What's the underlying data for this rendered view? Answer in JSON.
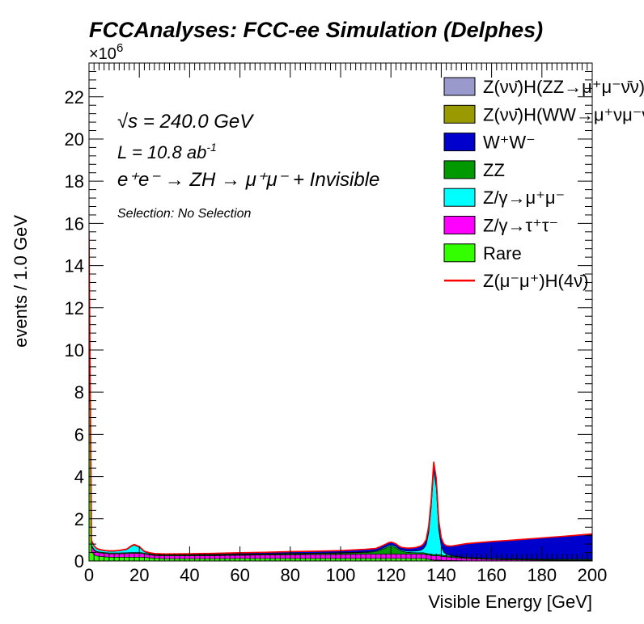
{
  "chart_data": {
    "type": "area",
    "title": "FCCAnalyses: FCC-ee Simulation (Delphes)",
    "xlabel": "Visible Energy [GeV]",
    "ylabel": "events / 1.0 GeV",
    "y_multiplier": "×10",
    "y_multiplier_exp": "6",
    "xlim": [
      0,
      200
    ],
    "ylim": [
      0,
      23.6
    ],
    "x_ticks": [
      "0",
      "20",
      "40",
      "60",
      "80",
      "100",
      "120",
      "140",
      "160",
      "180",
      "200"
    ],
    "y_ticks": [
      "0",
      "2",
      "4",
      "6",
      "8",
      "10",
      "12",
      "14",
      "16",
      "18",
      "20",
      "22"
    ],
    "annotations": {
      "sqrt_s": "√s = 240.0 GeV",
      "lumi": "L = 10.8 ab",
      "lumi_exp": "-1",
      "process": "e⁺e⁻ → ZH → μ⁺μ⁻ + Invisible",
      "selection": "Selection: No Selection"
    },
    "stack_order_bottom_to_top": [
      "Rare",
      "Z/γ→τ⁺τ⁻",
      "ZZ",
      "Z/γ→μ⁺μ⁻",
      "W⁺W⁻",
      "Z(νν̄)H(WW→μ⁺νμ⁻ν̄)",
      "Z(νν̄)H(ZZ→μ⁺μ⁻ν̄ν)"
    ],
    "x": [
      0,
      1,
      2,
      3,
      4,
      6,
      8,
      10,
      12,
      15,
      17,
      18,
      19,
      20,
      21,
      22,
      24,
      26,
      30,
      40,
      50,
      60,
      70,
      80,
      90,
      100,
      110,
      114,
      116,
      118,
      119,
      120,
      121,
      122,
      123,
      124,
      126,
      128,
      130,
      132,
      133,
      134,
      135,
      136,
      137,
      138,
      139,
      140,
      141,
      142,
      144,
      150,
      160,
      170,
      180,
      190,
      200
    ],
    "series": [
      {
        "name": "Rare",
        "color": "#33ff00",
        "values": [
          12.0,
          0.45,
          0.3,
          0.24,
          0.22,
          0.2,
          0.18,
          0.18,
          0.18,
          0.18,
          0.18,
          0.18,
          0.18,
          0.18,
          0.18,
          0.17,
          0.15,
          0.13,
          0.11,
          0.11,
          0.11,
          0.12,
          0.12,
          0.12,
          0.12,
          0.12,
          0.12,
          0.12,
          0.12,
          0.12,
          0.12,
          0.12,
          0.12,
          0.12,
          0.12,
          0.12,
          0.12,
          0.12,
          0.12,
          0.12,
          0.12,
          0.1,
          0.08,
          0.06,
          0.04,
          0.04,
          0.04,
          0.03,
          0.02,
          0.02,
          0.02,
          0.01,
          0.01,
          0.01,
          0.01,
          0.01,
          0.01
        ]
      },
      {
        "name": "Z/γ→τ⁺τ⁻",
        "color": "#ff00ff",
        "values": [
          2.0,
          0.25,
          0.2,
          0.18,
          0.17,
          0.16,
          0.16,
          0.16,
          0.16,
          0.17,
          0.18,
          0.18,
          0.18,
          0.18,
          0.17,
          0.16,
          0.14,
          0.13,
          0.13,
          0.13,
          0.14,
          0.15,
          0.16,
          0.17,
          0.18,
          0.19,
          0.2,
          0.2,
          0.2,
          0.2,
          0.2,
          0.2,
          0.2,
          0.2,
          0.2,
          0.2,
          0.2,
          0.2,
          0.2,
          0.2,
          0.2,
          0.2,
          0.2,
          0.2,
          0.2,
          0.2,
          0.2,
          0.19,
          0.19,
          0.18,
          0.15,
          0.1,
          0.06,
          0.04,
          0.03,
          0.02,
          0.02
        ]
      },
      {
        "name": "ZZ",
        "color": "#009900",
        "values": [
          0.05,
          0.05,
          0.05,
          0.04,
          0.04,
          0.04,
          0.04,
          0.04,
          0.04,
          0.04,
          0.04,
          0.04,
          0.04,
          0.04,
          0.04,
          0.04,
          0.04,
          0.04,
          0.04,
          0.04,
          0.04,
          0.04,
          0.04,
          0.05,
          0.05,
          0.06,
          0.08,
          0.12,
          0.2,
          0.3,
          0.35,
          0.38,
          0.35,
          0.3,
          0.22,
          0.15,
          0.1,
          0.08,
          0.07,
          0.07,
          0.07,
          0.06,
          0.06,
          0.06,
          0.06,
          0.06,
          0.06,
          0.06,
          0.05,
          0.05,
          0.05,
          0.04,
          0.04,
          0.04,
          0.04,
          0.04,
          0.04
        ]
      },
      {
        "name": "Z/γ→μ⁺μ⁻",
        "color": "#00ffff",
        "values": [
          1.5,
          0.2,
          0.15,
          0.12,
          0.1,
          0.08,
          0.08,
          0.08,
          0.1,
          0.15,
          0.3,
          0.35,
          0.3,
          0.25,
          0.15,
          0.06,
          0.03,
          0.02,
          0.02,
          0.02,
          0.02,
          0.02,
          0.02,
          0.02,
          0.02,
          0.02,
          0.03,
          0.03,
          0.04,
          0.05,
          0.06,
          0.06,
          0.06,
          0.06,
          0.05,
          0.05,
          0.05,
          0.06,
          0.08,
          0.12,
          0.2,
          0.4,
          1.0,
          2.2,
          4.0,
          3.2,
          1.2,
          0.4,
          0.15,
          0.07,
          0.03,
          0.02,
          0.01,
          0.01,
          0.01,
          0.01,
          0.01
        ]
      },
      {
        "name": "W⁺W⁻",
        "color": "#0000cc",
        "values": [
          0.02,
          0.02,
          0.02,
          0.02,
          0.02,
          0.02,
          0.02,
          0.02,
          0.02,
          0.02,
          0.03,
          0.03,
          0.03,
          0.03,
          0.03,
          0.03,
          0.03,
          0.03,
          0.03,
          0.04,
          0.05,
          0.06,
          0.07,
          0.08,
          0.09,
          0.1,
          0.12,
          0.12,
          0.13,
          0.13,
          0.13,
          0.13,
          0.13,
          0.13,
          0.13,
          0.13,
          0.14,
          0.15,
          0.17,
          0.2,
          0.22,
          0.25,
          0.3,
          0.35,
          0.4,
          0.42,
          0.42,
          0.42,
          0.4,
          0.4,
          0.45,
          0.65,
          0.8,
          0.9,
          1.0,
          1.1,
          1.2
        ]
      },
      {
        "name": "Z(νν̄)H(WW→μ⁺νμ⁻ν̄)",
        "color": "#999900",
        "values": [
          0.001,
          0.001,
          0.001,
          0.001,
          0.001,
          0.001,
          0.001,
          0.001,
          0.001,
          0.001,
          0.001,
          0.001,
          0.001,
          0.001,
          0.001,
          0.001,
          0.001,
          0.001,
          0.001,
          0.001,
          0.001,
          0.001,
          0.001,
          0.001,
          0.001,
          0.001,
          0.001,
          0.001,
          0.001,
          0.001,
          0.001,
          0.001,
          0.001,
          0.001,
          0.001,
          0.001,
          0.001,
          0.001,
          0.001,
          0.001,
          0.001,
          0.001,
          0.001,
          0.001,
          0.001,
          0.001,
          0.001,
          0.001,
          0.001,
          0.001,
          0.001,
          0.001,
          0.001,
          0.001,
          0.001,
          0.001,
          0.001
        ]
      },
      {
        "name": "Z(νν̄)H(ZZ→μ⁺μ⁻ν̄ν)",
        "color": "#9999cc",
        "values": [
          0.001,
          0.001,
          0.001,
          0.001,
          0.001,
          0.001,
          0.001,
          0.001,
          0.001,
          0.001,
          0.001,
          0.001,
          0.001,
          0.001,
          0.001,
          0.001,
          0.001,
          0.001,
          0.001,
          0.001,
          0.001,
          0.001,
          0.001,
          0.001,
          0.001,
          0.001,
          0.001,
          0.001,
          0.001,
          0.001,
          0.001,
          0.001,
          0.001,
          0.001,
          0.001,
          0.001,
          0.001,
          0.001,
          0.001,
          0.001,
          0.001,
          0.001,
          0.001,
          0.001,
          0.001,
          0.001,
          0.001,
          0.001,
          0.001,
          0.001,
          0.001,
          0.001,
          0.001,
          0.001,
          0.001,
          0.001,
          0.001
        ]
      }
    ],
    "signal": {
      "name": "Z(μ⁻μ⁺)H(4ν̄)",
      "color": "#ff0000",
      "line": "overlaid on stack total"
    },
    "legend": {
      "placement": "top-right",
      "entries": [
        {
          "label": "Z(νν̄)H(ZZ→μ⁺μ⁻ν̄ν)",
          "color": "#9999cc",
          "kind": "box"
        },
        {
          "label": "Z(νν̄)H(WW→μ⁺νμ⁻ν̄)",
          "color": "#999900",
          "kind": "box"
        },
        {
          "label": "W⁺W⁻",
          "color": "#0000cc",
          "kind": "box"
        },
        {
          "label": "ZZ",
          "color": "#009900",
          "kind": "box"
        },
        {
          "label": "Z/γ→μ⁺μ⁻",
          "color": "#00ffff",
          "kind": "box"
        },
        {
          "label": "Z/γ→τ⁺τ⁻",
          "color": "#ff00ff",
          "kind": "box"
        },
        {
          "label": "Rare",
          "color": "#33ff00",
          "kind": "box"
        },
        {
          "label": "Z(μ⁻μ⁺)H(4ν̄)",
          "color": "#ff0000",
          "kind": "line"
        }
      ]
    },
    "grid": false
  }
}
